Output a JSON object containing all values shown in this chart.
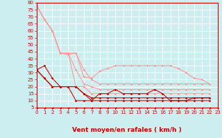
{
  "bg_color": "#cceef0",
  "grid_color": "#aadddd",
  "xlabel": "Vent moyen/en rafales ( km/h )",
  "xlabel_color": "#cc0000",
  "tick_label_color": "#cc0000",
  "ylim": [
    5,
    80
  ],
  "xlim": [
    0,
    23
  ],
  "yticks": [
    5,
    10,
    15,
    20,
    25,
    30,
    35,
    40,
    45,
    50,
    55,
    60,
    65,
    70,
    75,
    80
  ],
  "xticks": [
    0,
    1,
    2,
    3,
    4,
    5,
    6,
    7,
    8,
    9,
    10,
    11,
    12,
    13,
    14,
    15,
    16,
    17,
    18,
    19,
    20,
    21,
    22,
    23
  ],
  "lines_light": [
    [
      78,
      68,
      60,
      44,
      43,
      44,
      27,
      26,
      31,
      33,
      35,
      35,
      35,
      35,
      35,
      35,
      35,
      35,
      33,
      30,
      26,
      25,
      22
    ],
    [
      78,
      68,
      60,
      44,
      44,
      44,
      32,
      25,
      22,
      22,
      22,
      22,
      22,
      22,
      22,
      22,
      22,
      22,
      22,
      22,
      22,
      22,
      22
    ],
    [
      78,
      68,
      60,
      44,
      44,
      32,
      22,
      20,
      18,
      18,
      18,
      18,
      18,
      18,
      18,
      18,
      18,
      18,
      18,
      18,
      18,
      18,
      18
    ],
    [
      78,
      68,
      60,
      44,
      44,
      20,
      20,
      15,
      15,
      15,
      15,
      15,
      15,
      15,
      15,
      15,
      15,
      15,
      15,
      15,
      15,
      15,
      15
    ]
  ],
  "lines_dark": [
    [
      32,
      35,
      26,
      20,
      20,
      20,
      15,
      10,
      15,
      15,
      18,
      15,
      15,
      15,
      15,
      18,
      15,
      10,
      10,
      10,
      12,
      12,
      12
    ],
    [
      32,
      26,
      20,
      20,
      20,
      20,
      15,
      12,
      12,
      12,
      12,
      12,
      12,
      12,
      12,
      12,
      12,
      12,
      12,
      12,
      12,
      12,
      12
    ],
    [
      32,
      26,
      20,
      20,
      20,
      10,
      10,
      10,
      10,
      10,
      10,
      10,
      10,
      10,
      10,
      10,
      10,
      10,
      10,
      10,
      10,
      10,
      10
    ]
  ],
  "light_color": "#ff9999",
  "dark_color": "#cc0000",
  "marker_size": 1.8,
  "line_width": 0.8,
  "tick_fontsize": 5.0,
  "xlabel_fontsize": 6.5
}
